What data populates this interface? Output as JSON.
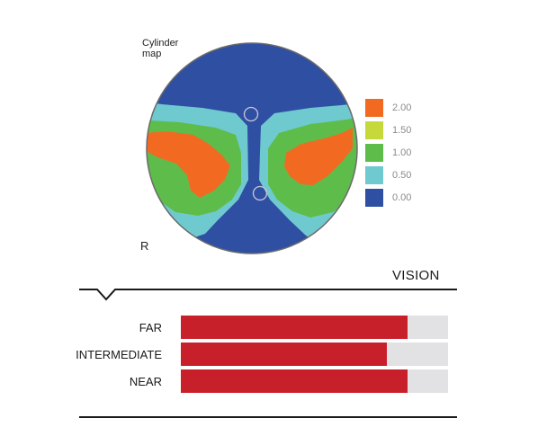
{
  "map": {
    "title_line1": "Cylinder",
    "title_line2": "map",
    "eye": "R"
  },
  "legend": [
    {
      "label": "2.00",
      "color": "#f26a21"
    },
    {
      "label": "1.50",
      "color": "#c6d93a"
    },
    {
      "label": "1.00",
      "color": "#5ebd4a"
    },
    {
      "label": "0.50",
      "color": "#6fcad0"
    },
    {
      "label": "0.00",
      "color": "#2f4fa3"
    }
  ],
  "vision": {
    "title": "VISION",
    "rows": [
      {
        "label": "FAR",
        "value": 0.85
      },
      {
        "label": "INTERMEDIATE",
        "value": 0.77
      },
      {
        "label": "NEAR",
        "value": 0.85
      }
    ],
    "fill_color": "#c8202a",
    "track_color": "#e2e2e4"
  }
}
